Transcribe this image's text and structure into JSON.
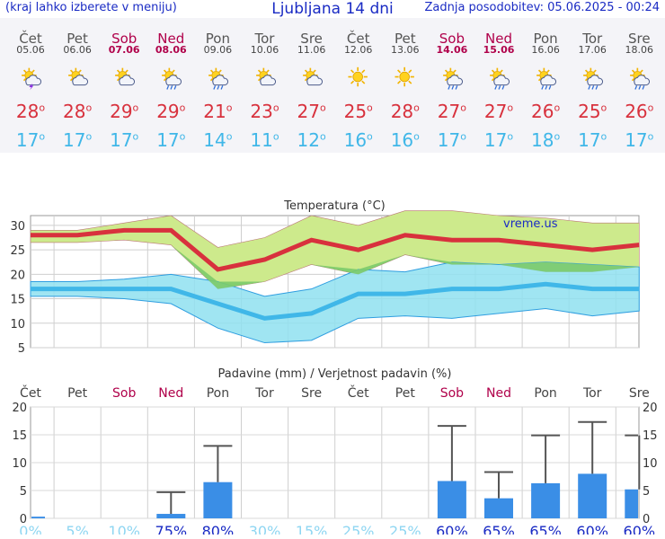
{
  "header": {
    "note": "(kraj lahko izberete v meniju)",
    "title": "Ljubljana 14 dni",
    "updated": "Zadnja posodobitev: 05.06.2025 - 00:24"
  },
  "days": [
    {
      "name": "Čet",
      "date": "05.06",
      "weekend": false,
      "icon": "sun-cloud-storm-icon",
      "tmax": "28",
      "tmin": "17"
    },
    {
      "name": "Pet",
      "date": "06.06",
      "weekend": false,
      "icon": "sun-cloud-icon",
      "tmax": "28",
      "tmin": "17"
    },
    {
      "name": "Sob",
      "date": "07.06",
      "weekend": true,
      "icon": "sun-cloud-icon",
      "tmax": "29",
      "tmin": "17"
    },
    {
      "name": "Ned",
      "date": "08.06",
      "weekend": true,
      "icon": "sun-cloud-rain-icon",
      "tmax": "29",
      "tmin": "17"
    },
    {
      "name": "Pon",
      "date": "09.06",
      "weekend": false,
      "icon": "sun-cloud-rain-icon",
      "tmax": "21",
      "tmin": "14"
    },
    {
      "name": "Tor",
      "date": "10.06",
      "weekend": false,
      "icon": "sun-cloud-icon",
      "tmax": "23",
      "tmin": "11"
    },
    {
      "name": "Sre",
      "date": "11.06",
      "weekend": false,
      "icon": "sun-cloud-icon",
      "tmax": "27",
      "tmin": "12"
    },
    {
      "name": "Čet",
      "date": "12.06",
      "weekend": false,
      "icon": "sun-icon",
      "tmax": "25",
      "tmin": "16"
    },
    {
      "name": "Pet",
      "date": "13.06",
      "weekend": false,
      "icon": "sun-icon",
      "tmax": "28",
      "tmin": "16"
    },
    {
      "name": "Sob",
      "date": "14.06",
      "weekend": true,
      "icon": "sun-cloud-rain-icon",
      "tmax": "27",
      "tmin": "17"
    },
    {
      "name": "Ned",
      "date": "15.06",
      "weekend": true,
      "icon": "sun-cloud-rain-icon",
      "tmax": "27",
      "tmin": "17"
    },
    {
      "name": "Pon",
      "date": "16.06",
      "weekend": false,
      "icon": "sun-cloud-rain-icon",
      "tmax": "26",
      "tmin": "18"
    },
    {
      "name": "Tor",
      "date": "17.06",
      "weekend": false,
      "icon": "sun-cloud-rain-icon",
      "tmax": "25",
      "tmin": "17"
    },
    {
      "name": "Sre",
      "date": "18.06",
      "weekend": false,
      "icon": "sun-cloud-rain-icon",
      "tmax": "26",
      "tmin": "17"
    }
  ],
  "colors": {
    "max_line": "#d8313d",
    "min_line": "#40b7e8",
    "max_band": "#cdea8c",
    "min_band": "#8fe0f0",
    "overlap_band": "#7ccb6a",
    "bar": "#3a8ee6",
    "whisker": "#555555",
    "prob_low": "#8fd6f2",
    "prob_high": "#1a2bc4"
  },
  "chart_data": [
    {
      "type": "line",
      "title": "Temperatura (°C)",
      "watermark": "vreme.us",
      "ylim": [
        5,
        32
      ],
      "yticks": [
        5,
        10,
        15,
        20,
        25,
        30
      ],
      "series": [
        {
          "values": [
            28,
            28,
            29,
            29,
            21,
            23,
            27,
            25,
            28,
            27,
            27,
            26,
            25,
            26
          ]
        },
        {
          "values": [
            17,
            17,
            17,
            17,
            14,
            11,
            12,
            16,
            16,
            17,
            17,
            18,
            17,
            17
          ]
        }
      ],
      "bands": [
        {
          "upper": [
            29,
            29,
            30.5,
            32,
            25.5,
            27.5,
            32,
            30,
            33,
            33,
            32,
            31.5,
            30.5,
            30.5
          ],
          "lower": [
            26.5,
            26.5,
            27,
            26,
            17,
            18.5,
            22,
            20,
            24,
            22,
            22,
            20.5,
            20.5,
            21.5
          ]
        },
        {
          "upper": [
            18.5,
            18.5,
            19,
            20,
            18.5,
            15.5,
            17,
            21,
            20.5,
            22.5,
            22,
            22.5,
            22,
            21.5
          ],
          "lower": [
            15.5,
            15.5,
            15,
            14,
            9,
            6,
            6.5,
            11,
            11.5,
            11,
            12,
            13,
            11.5,
            12.5
          ]
        }
      ]
    },
    {
      "type": "bar",
      "title": "Padavine (mm) / Verjetnost padavin (%)",
      "ylim": [
        0,
        20
      ],
      "yticks": [
        0,
        5,
        10,
        15,
        20
      ],
      "values": [
        0.3,
        0,
        0,
        0.8,
        6.5,
        0,
        0,
        0,
        0,
        6.7,
        3.6,
        6.3,
        8,
        5.2
      ],
      "whisker_high": [
        0,
        0,
        0,
        4.7,
        13,
        0,
        0,
        0,
        0,
        16.6,
        8.3,
        14.9,
        17.3,
        14.9
      ],
      "probability": [
        "0%",
        "5%",
        "10%",
        "75%",
        "80%",
        "30%",
        "15%",
        "25%",
        "25%",
        "60%",
        "65%",
        "65%",
        "60%",
        "60%"
      ]
    }
  ]
}
